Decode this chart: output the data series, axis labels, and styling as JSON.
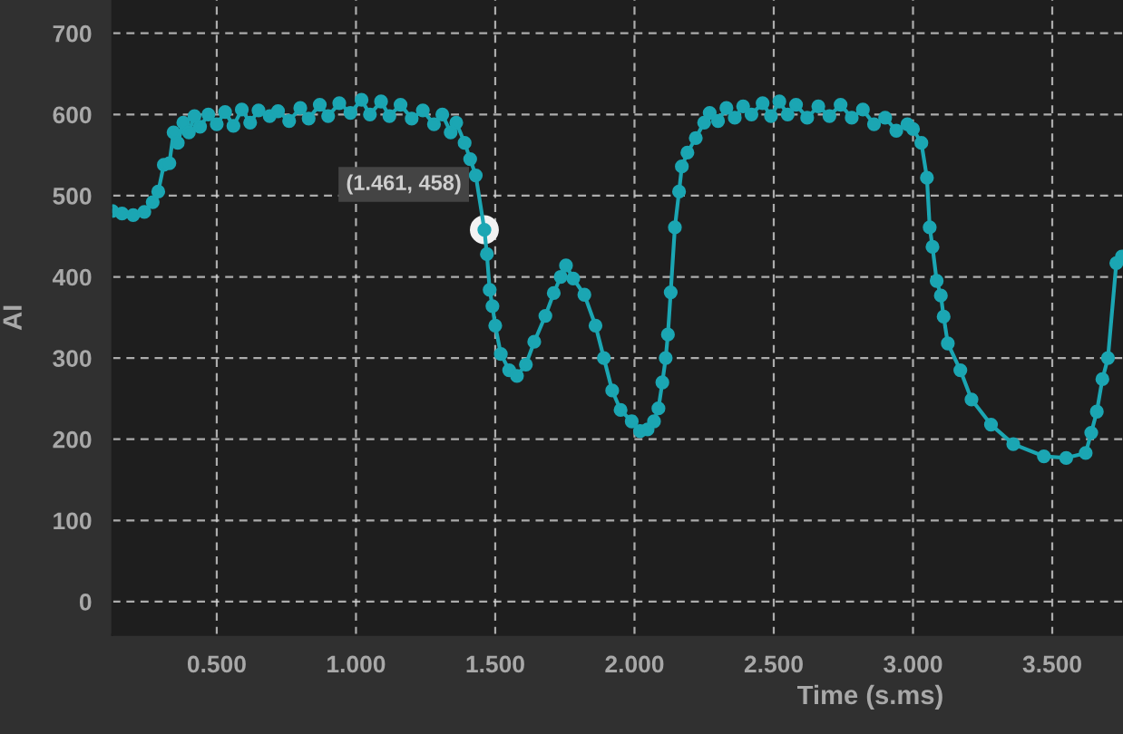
{
  "chart_data": {
    "type": "line",
    "xlabel": "Time (s.ms)",
    "ylabel": "AI",
    "marker": "circle",
    "line_style": "solid",
    "grid": true,
    "legend": false,
    "xlim": [
      0.125,
      3.754
    ],
    "ylim": [
      -41,
      741
    ],
    "xticks": [
      {
        "value": 0.5,
        "label": "0.500"
      },
      {
        "value": 1.0,
        "label": "1.000"
      },
      {
        "value": 1.5,
        "label": "1.500"
      },
      {
        "value": 2.0,
        "label": "2.000"
      },
      {
        "value": 2.5,
        "label": "2.500"
      },
      {
        "value": 3.0,
        "label": "3.000"
      },
      {
        "value": 3.5,
        "label": "3.500"
      }
    ],
    "yticks": [
      0,
      100,
      200,
      300,
      400,
      500,
      600,
      700
    ],
    "annotations": [
      {
        "text": "(1.461, 458)",
        "x": 1.461,
        "y": 458
      }
    ],
    "series": [
      {
        "color": "#1ba6b3",
        "x": [
          0.125,
          0.16,
          0.2,
          0.24,
          0.27,
          0.29,
          0.31,
          0.33,
          0.345,
          0.36,
          0.38,
          0.4,
          0.42,
          0.44,
          0.47,
          0.5,
          0.53,
          0.56,
          0.59,
          0.62,
          0.65,
          0.69,
          0.72,
          0.76,
          0.8,
          0.83,
          0.87,
          0.9,
          0.94,
          0.98,
          1.02,
          1.05,
          1.09,
          1.12,
          1.16,
          1.2,
          1.24,
          1.28,
          1.31,
          1.34,
          1.36,
          1.39,
          1.41,
          1.43,
          1.461,
          1.47,
          1.48,
          1.49,
          1.5,
          1.52,
          1.55,
          1.578,
          1.61,
          1.64,
          1.68,
          1.71,
          1.735,
          1.754,
          1.78,
          1.82,
          1.86,
          1.89,
          1.92,
          1.95,
          1.99,
          2.02,
          2.047,
          2.07,
          2.086,
          2.1,
          2.112,
          2.12,
          2.13,
          2.145,
          2.16,
          2.17,
          2.19,
          2.22,
          2.25,
          2.27,
          2.3,
          2.33,
          2.36,
          2.39,
          2.42,
          2.46,
          2.49,
          2.52,
          2.55,
          2.58,
          2.62,
          2.66,
          2.7,
          2.74,
          2.78,
          2.82,
          2.86,
          2.9,
          2.94,
          2.98,
          3.0,
          3.03,
          3.05,
          3.06,
          3.07,
          3.085,
          3.1,
          3.11,
          3.125,
          3.17,
          3.21,
          3.28,
          3.36,
          3.47,
          3.55,
          3.62,
          3.64,
          3.66,
          3.68,
          3.7,
          3.73,
          3.75
        ],
        "values": [
          481,
          478,
          476,
          480,
          492,
          505,
          538,
          540,
          578,
          565,
          590,
          578,
          598,
          585,
          600,
          588,
          603,
          586,
          606,
          590,
          605,
          598,
          604,
          592,
          608,
          595,
          612,
          598,
          614,
          602,
          618,
          600,
          616,
          598,
          612,
          595,
          605,
          588,
          600,
          578,
          590,
          565,
          545,
          525,
          458,
          428,
          384,
          364,
          340,
          305,
          285,
          278,
          292,
          320,
          352,
          380,
          400,
          414,
          398,
          378,
          340,
          300,
          260,
          236,
          222,
          210,
          212,
          222,
          238,
          270,
          300,
          329,
          381,
          461,
          505,
          536,
          553,
          571,
          590,
          602,
          592,
          608,
          596,
          610,
          600,
          614,
          598,
          616,
          600,
          612,
          596,
          610,
          598,
          612,
          596,
          606,
          588,
          596,
          580,
          588,
          582,
          565,
          522,
          461,
          437,
          395,
          377,
          351,
          318,
          285,
          249,
          218,
          194,
          179,
          177,
          183,
          208,
          234,
          274,
          300,
          417,
          425
        ]
      }
    ]
  }
}
